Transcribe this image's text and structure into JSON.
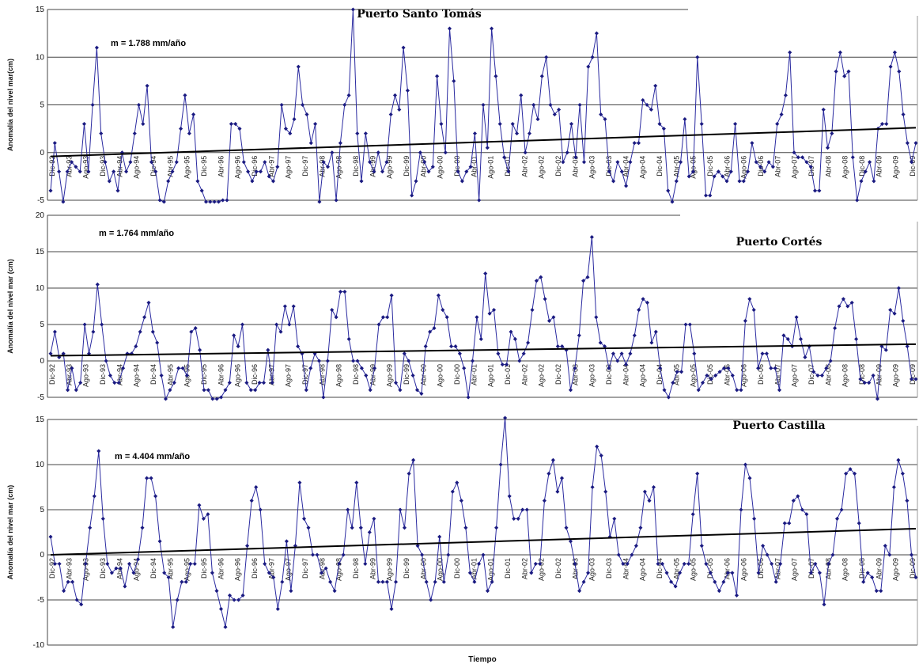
{
  "x_axis_label": "Tiempo",
  "chart_data": [
    {
      "type": "line",
      "title": "Puerto Santo Tomás",
      "ylabel": "Anomalía del nivel mar(cm)",
      "xlabel": "",
      "annotation": "m = 1.788 mm/año",
      "ylim": [
        -5,
        15
      ],
      "yticks": [
        -5,
        0,
        5,
        10,
        15
      ],
      "x_tick_labels": [
        "Dic-92",
        "Abr-93",
        "Ago-93",
        "Dic-93",
        "Abr-94",
        "Ago-94",
        "Dic-94",
        "Abr-95",
        "Ago-95",
        "Dic-95",
        "Abr-96",
        "Ago-96",
        "Dic-96",
        "Abr-97",
        "Ago-97",
        "Dic-97",
        "Abr-98",
        "Ago-98",
        "Dic-98",
        "Abr-99",
        "Ago-99",
        "Dic-99",
        "Abr-00",
        "Ago-00",
        "Dic-00",
        "Abr-01",
        "Ago-01",
        "Dic-01",
        "Abr-02",
        "Ago-02",
        "Dic-02",
        "Abr-03",
        "Ago-03",
        "Dic-03",
        "Abr-04",
        "Ago-04",
        "Dic-04",
        "Abr-05",
        "Ago-05",
        "Dic-05",
        "Abr-06",
        "Ago-06",
        "Dic-06",
        "Abr-07",
        "Ago-07",
        "Dic-07",
        "Abr-08",
        "Ago-08",
        "Dic-08",
        "Abr-09",
        "Ago-09",
        "Dic-09"
      ],
      "series": [
        {
          "values": [
            -4,
            1,
            -2,
            -5.5,
            -2,
            -1,
            -1.5,
            -2,
            3,
            -2,
            5,
            11,
            2,
            -1,
            -3,
            -2,
            -4,
            0,
            -2,
            -1,
            2,
            5,
            3,
            7,
            -1,
            -2,
            -5,
            -6,
            -3,
            -2,
            -1,
            2.5,
            6,
            2,
            4,
            -3,
            -4,
            -6,
            -7,
            -7.5,
            -6,
            -5,
            -5,
            3,
            3,
            2.5,
            -1,
            -2,
            -3,
            -2,
            -2,
            -1,
            -2.5,
            -3,
            -1.5,
            5,
            2.5,
            2,
            3.5,
            9,
            5,
            4,
            1,
            3,
            -6,
            -1,
            -1.5,
            0,
            -5,
            1,
            5,
            6,
            15,
            2,
            -3,
            2,
            -1,
            -2,
            0,
            -2,
            -1,
            4,
            6,
            4.5,
            11,
            6.5,
            -4.5,
            -3,
            0,
            -1,
            -2,
            -1.5,
            8,
            3,
            0,
            13,
            7.5,
            -2,
            -3,
            -2,
            -1.5,
            2,
            -5,
            5,
            0.5,
            13,
            8,
            3,
            -0.5,
            -2,
            3,
            2,
            6,
            0,
            2,
            5,
            3.5,
            8,
            10,
            5,
            4,
            4.5,
            -1,
            0,
            3,
            -0.5,
            5,
            -1,
            9,
            10,
            12.5,
            4,
            3.5,
            -2,
            -3,
            -1,
            -2,
            -3.5,
            -1,
            1,
            1,
            5.5,
            5,
            4.5,
            7,
            3,
            2.5,
            -4,
            -6,
            -3,
            -1,
            3.5,
            -2.5,
            -2,
            10,
            3,
            -4.5,
            -4.5,
            -2.5,
            -2,
            -2.5,
            -3,
            -2,
            3,
            -3,
            -3,
            -2,
            1,
            -1,
            -1.5,
            -2,
            -1,
            -1.5,
            3,
            4,
            6,
            10.5,
            0,
            -0.5,
            -0.5,
            -1,
            -1.5,
            -4,
            -4,
            4.5,
            0.5,
            2,
            8.5,
            10.5,
            8,
            8.5,
            -0.5,
            -5,
            -3,
            -2,
            -1,
            -3,
            2.5,
            3,
            3,
            9,
            10.5,
            8.5,
            4,
            1,
            -1,
            1
          ]
        },
        {
          "name": "trend",
          "values": [
            -0.4,
            2.6
          ]
        }
      ]
    },
    {
      "type": "line",
      "title": "Puerto Cortés",
      "ylabel": "Anomalía del nivel mar (cm)",
      "xlabel": "",
      "annotation": "m = 1.764 mm/año",
      "ylim": [
        -5,
        20
      ],
      "yticks": [
        -5,
        0,
        5,
        10,
        15,
        20
      ],
      "x_tick_labels": [
        "Dic-92",
        "Abr-93",
        "Ago-93",
        "Dic-93",
        "Abr-94",
        "Ago-94",
        "Dic-94",
        "Abr-95",
        "Ago-95",
        "Dic-95",
        "Abr-96",
        "Ago-96",
        "Dic-96",
        "Abr-97",
        "Ago-97",
        "Dic-97",
        "Abr-98",
        "Ago-98",
        "Dic-98",
        "Abr-99",
        "Ago-99",
        "Dic-99",
        "Abr-00",
        "Ago-00",
        "Dic-00",
        "Abr-01",
        "Ago-01",
        "Dic-01",
        "Abr-02",
        "Ago-02",
        "Dic-02",
        "Abr-03",
        "Ago-03",
        "Dic-03",
        "Abr-04",
        "Ago-04",
        "Dic-04",
        "Abr-05",
        "Ago-05",
        "Dic-05",
        "Abr-06",
        "Ago-06",
        "Dic-06",
        "Abr-07",
        "Ago-07",
        "Dic-07",
        "Abr-08",
        "Ago-08",
        "Dic-08",
        "Abr-09",
        "Ago-09",
        "Dic-09"
      ],
      "series": [
        {
          "values": [
            1,
            4,
            0.5,
            1,
            -4,
            -1,
            -4,
            -3,
            5,
            1,
            4,
            10.5,
            5,
            0,
            -2,
            -3,
            -3,
            -1,
            1,
            1,
            2,
            4,
            6,
            8,
            4,
            2.5,
            -2,
            -5.5,
            -4,
            -3,
            -1,
            -1,
            -2,
            4,
            4.5,
            1.5,
            -4,
            -4,
            -6,
            -6.5,
            -5,
            -4,
            -3,
            3.5,
            2,
            5,
            -3,
            -4,
            -4,
            -3,
            -3,
            1.5,
            -3,
            5,
            4,
            7.5,
            5,
            7.5,
            2,
            1,
            -4,
            -1,
            1,
            0,
            -5,
            0,
            7,
            6,
            9.5,
            9.5,
            3,
            0,
            0,
            -1,
            -2,
            -4,
            -1,
            5,
            6,
            6,
            9,
            -3,
            -4,
            1,
            0,
            -2,
            -4,
            -4.5,
            2,
            4,
            4.5,
            9,
            7,
            6,
            2,
            2,
            1,
            -1,
            -5,
            0,
            6,
            3,
            12,
            6.5,
            7,
            1,
            -0.5,
            -0.5,
            4,
            3,
            0,
            1,
            2.5,
            7,
            11,
            11.5,
            8.5,
            5.5,
            6,
            2,
            2,
            1.5,
            -4,
            -1,
            3.5,
            11,
            11.5,
            17,
            6,
            2.5,
            2,
            -1,
            1,
            0,
            1,
            -0.5,
            1,
            3.5,
            7,
            8.5,
            8,
            2.5,
            4,
            -1,
            -4,
            -5,
            -3,
            -1.5,
            -1.5,
            5,
            5,
            1,
            -4,
            -3,
            -2,
            -2.5,
            -2,
            -1.5,
            -1,
            -1,
            -2,
            -4,
            -4,
            5.5,
            8.5,
            7,
            -1,
            1,
            1,
            -1,
            -1,
            -4,
            3.5,
            3,
            2,
            6,
            3,
            0.5,
            2,
            -1.5,
            -2,
            -2,
            -1,
            0,
            4.5,
            7.5,
            8.5,
            7.5,
            8,
            3,
            -2.5,
            -3,
            -3,
            -2,
            -6,
            2,
            1.5,
            7,
            6.5,
            10,
            5.5,
            2,
            -2.5,
            -2.5
          ]
        },
        {
          "name": "trend",
          "values": [
            0.7,
            2.3
          ]
        }
      ]
    },
    {
      "type": "line",
      "title": "Puerto Castilla",
      "ylabel": "Anomalía del nivel mar (cm)",
      "xlabel": "",
      "annotation": "m = 4.404 mm/año",
      "ylim": [
        -10,
        15
      ],
      "yticks": [
        -10,
        -5,
        0,
        5,
        10,
        15
      ],
      "x_tick_labels": [
        "Dic-92",
        "Abr-93",
        "Ago-93",
        "Dic-93",
        "Abr-94",
        "Ago-94",
        "Dic-94",
        "Abr-95",
        "Ago-95",
        "Dic-95",
        "Abr-96",
        "Ago-96",
        "Dic-96",
        "Abr-97",
        "Ago-97",
        "Dic-97",
        "Abr-98",
        "Ago-98",
        "Dic-98",
        "Abr-99",
        "Ago-99",
        "Dic-99",
        "Abr-00",
        "Ago-00",
        "Dic-00",
        "Abr-01",
        "Ago-01",
        "Dic-01",
        "Abr-02",
        "Ago-02",
        "Dic-02",
        "Abr-03",
        "Ago-03",
        "Dic-03",
        "Abr-04",
        "Ago-04",
        "Dic-04",
        "Abr-05",
        "Ago-05",
        "Dic-05",
        "Abr-06",
        "Ago-06",
        "Dic-06",
        "Abr-07",
        "Ago-07",
        "Dic-07",
        "Abr-08",
        "Ago-08",
        "Dic-08",
        "Abr-09",
        "Ago-09",
        "Dic-09"
      ],
      "series": [
        {
          "values": [
            2,
            -1,
            -1,
            -4,
            -3,
            -3,
            -5,
            -5.5,
            -1,
            3,
            6.5,
            11.5,
            4,
            -1,
            -2,
            -1.5,
            -1.5,
            -3.5,
            -1,
            -2,
            -0.5,
            3,
            8.5,
            8.5,
            6.5,
            1.5,
            -2,
            -2.5,
            -8,
            -5,
            -3,
            -3,
            -1,
            -1,
            5.5,
            4,
            4.5,
            -2,
            -4,
            -6,
            -8,
            -4.5,
            -5,
            -5,
            -4.5,
            1,
            6,
            7.5,
            5,
            -1,
            -2,
            -2.5,
            -6,
            -3,
            1.5,
            -4,
            1,
            8,
            4,
            3,
            0,
            0,
            -2,
            -1.5,
            -3,
            -4,
            -1,
            0,
            5,
            3,
            8,
            3,
            -1,
            2.5,
            4,
            -3,
            -3,
            -3,
            -6,
            -3,
            5,
            3,
            9,
            10.5,
            1,
            0,
            -3,
            -5,
            -3,
            2,
            -3,
            0,
            7,
            8,
            6,
            3,
            -2,
            -3,
            -1,
            0,
            -4,
            -3,
            3,
            10,
            15.5,
            6.5,
            4,
            4,
            5,
            5,
            -2,
            -1,
            -1,
            6,
            9,
            10.5,
            7,
            8.5,
            3,
            1.5,
            -1,
            -4,
            -3,
            -2,
            7.5,
            12,
            11,
            7,
            2,
            4,
            0,
            -1,
            -1,
            0,
            1,
            3,
            7,
            6,
            7.5,
            -1,
            -1,
            -2,
            -3,
            -3.5,
            -2,
            -1,
            -1,
            4.5,
            9,
            1,
            -1,
            -2,
            -3,
            -4,
            -3,
            -2,
            -2,
            -4.5,
            5,
            10,
            8.5,
            4,
            -2,
            1,
            0,
            -1,
            -3,
            -1,
            3.5,
            3.5,
            6,
            6.5,
            5,
            4.5,
            -2,
            -1,
            -2,
            -5.5,
            -1,
            0,
            4,
            5,
            9,
            9.5,
            9,
            3.5,
            -3,
            -2,
            -2.5,
            -4,
            -4,
            1,
            0,
            7.5,
            10.5,
            9,
            6,
            0,
            -2.5
          ]
        },
        {
          "name": "trend",
          "values": [
            0,
            2.9
          ]
        }
      ]
    }
  ]
}
